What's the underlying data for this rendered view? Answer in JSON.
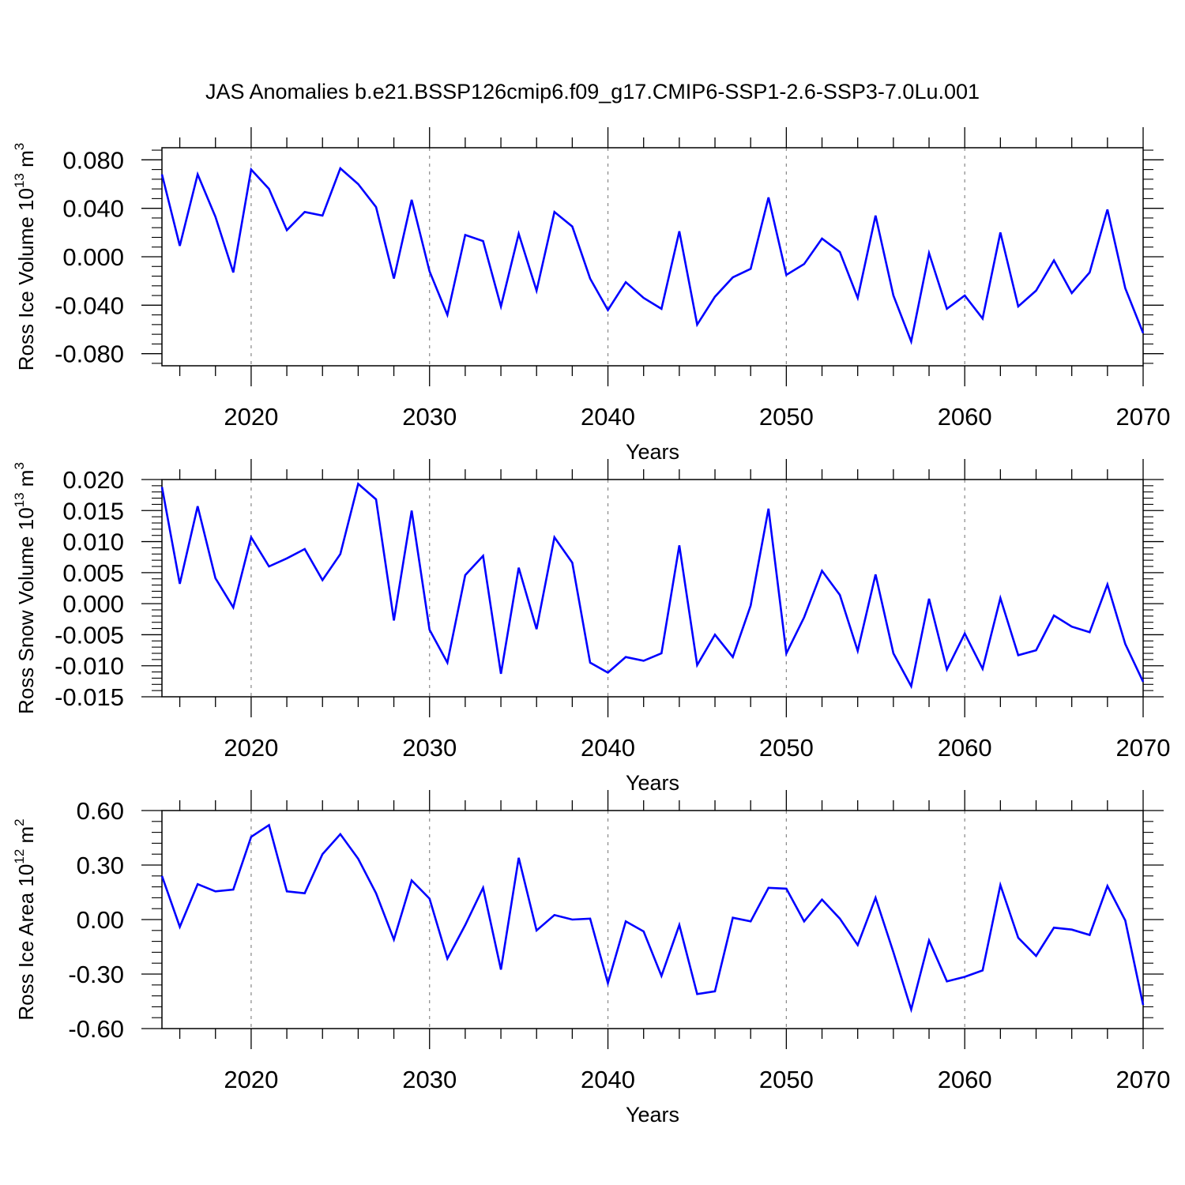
{
  "figure_title": "JAS Anomalies b.e21.BSSP126cmip6.f09_g17.CMIP6-SSP1-2.6-SSP3-7.0Lu.001",
  "colors": {
    "line": "#0000ff",
    "axes": "#000000",
    "grid": "#888888"
  },
  "chart_data": [
    {
      "type": "line",
      "xlabel": "Years",
      "ylabel_base": "Ross Ice Volume 10",
      "ylabel_exp": "13",
      "ylabel_unit": " m",
      "ylabel_unit_exp": "3",
      "xlim": [
        2015,
        2070
      ],
      "ylim": [
        -0.09,
        0.09
      ],
      "xticks": [
        2020,
        2030,
        2040,
        2050,
        2060,
        2070
      ],
      "xtick_labels": [
        "2020",
        "2030",
        "2040",
        "2050",
        "2060",
        "2070"
      ],
      "yticks": [
        -0.08,
        -0.04,
        0.0,
        0.04,
        0.08
      ],
      "ytick_labels": [
        "-0.080",
        "-0.040",
        "0.000",
        "0.040",
        "0.080"
      ],
      "grid": "vertical dashed at decades",
      "x_start": 2015,
      "x_step": 1,
      "values": [
        0.068,
        0.009,
        0.068,
        0.033,
        -0.013,
        0.072,
        0.056,
        0.022,
        0.037,
        0.034,
        0.073,
        0.06,
        0.041,
        -0.018,
        0.047,
        -0.012,
        -0.048,
        0.018,
        0.013,
        -0.041,
        0.019,
        -0.028,
        0.037,
        0.025,
        -0.018,
        -0.044,
        -0.021,
        -0.034,
        -0.043,
        0.021,
        -0.056,
        -0.033,
        -0.017,
        -0.01,
        0.049,
        -0.015,
        -0.006,
        0.015,
        0.004,
        -0.034,
        0.034,
        -0.032,
        -0.07,
        0.003,
        -0.043,
        -0.032,
        -0.051,
        0.02,
        -0.041,
        -0.028,
        -0.003,
        -0.03,
        -0.013,
        0.039,
        -0.026,
        -0.063
      ]
    },
    {
      "type": "line",
      "xlabel": "Years",
      "ylabel_base": "Ross Snow Volume 10",
      "ylabel_exp": "13",
      "ylabel_unit": " m",
      "ylabel_unit_exp": "3",
      "xlim": [
        2015,
        2070
      ],
      "ylim": [
        -0.015,
        0.02
      ],
      "xticks": [
        2020,
        2030,
        2040,
        2050,
        2060,
        2070
      ],
      "xtick_labels": [
        "2020",
        "2030",
        "2040",
        "2050",
        "2060",
        "2070"
      ],
      "yticks": [
        -0.015,
        -0.01,
        -0.005,
        0.0,
        0.005,
        0.01,
        0.015,
        0.02
      ],
      "ytick_labels": [
        "-0.015",
        "-0.010",
        "-0.005",
        "0.000",
        "0.005",
        "0.010",
        "0.015",
        "0.020"
      ],
      "grid": "vertical dashed at decades",
      "x_start": 2015,
      "x_step": 1,
      "values": [
        0.0188,
        0.0032,
        0.0157,
        0.0041,
        -0.0006,
        0.0107,
        0.006,
        0.0073,
        0.0088,
        0.0038,
        0.008,
        0.0193,
        0.0168,
        -0.0027,
        0.015,
        -0.0042,
        -0.0095,
        0.0046,
        0.0077,
        -0.0113,
        0.0058,
        -0.0041,
        0.0107,
        0.0066,
        -0.0095,
        -0.0111,
        -0.0086,
        -0.0092,
        -0.008,
        0.0094,
        -0.0099,
        -0.005,
        -0.0086,
        -0.0003,
        0.0153,
        -0.008,
        -0.0022,
        0.0053,
        0.0014,
        -0.0076,
        0.0047,
        -0.008,
        -0.0133,
        0.0008,
        -0.0106,
        -0.0048,
        -0.0105,
        0.0009,
        -0.0083,
        -0.0075,
        -0.0019,
        -0.0037,
        -0.0046,
        0.0031,
        -0.0065,
        -0.0126
      ]
    },
    {
      "type": "line",
      "xlabel": "Years",
      "ylabel_base": "Ross Ice Area 10",
      "ylabel_exp": "12",
      "ylabel_unit": " m",
      "ylabel_unit_exp": "2",
      "xlim": [
        2015,
        2070
      ],
      "ylim": [
        -0.6,
        0.6
      ],
      "xticks": [
        2020,
        2030,
        2040,
        2050,
        2060,
        2070
      ],
      "xtick_labels": [
        "2020",
        "2030",
        "2040",
        "2050",
        "2060",
        "2070"
      ],
      "yticks": [
        -0.6,
        -0.3,
        0.0,
        0.3,
        0.6
      ],
      "ytick_labels": [
        "-0.60",
        "-0.30",
        "0.00",
        "0.30",
        "0.60"
      ],
      "grid": "vertical dashed at decades",
      "x_start": 2015,
      "x_step": 1,
      "values": [
        0.24,
        -0.04,
        0.195,
        0.155,
        0.165,
        0.455,
        0.52,
        0.155,
        0.145,
        0.36,
        0.47,
        0.335,
        0.145,
        -0.11,
        0.215,
        0.115,
        -0.215,
        -0.03,
        0.175,
        -0.275,
        0.34,
        -0.06,
        0.025,
        0.0,
        0.005,
        -0.35,
        -0.01,
        -0.065,
        -0.31,
        -0.03,
        -0.41,
        -0.395,
        0.01,
        -0.01,
        0.175,
        0.17,
        -0.01,
        0.11,
        0.005,
        -0.14,
        0.12,
        -0.18,
        -0.495,
        -0.115,
        -0.34,
        -0.315,
        -0.28,
        0.19,
        -0.1,
        -0.2,
        -0.045,
        -0.055,
        -0.085,
        0.185,
        -0.005,
        -0.47
      ]
    }
  ]
}
